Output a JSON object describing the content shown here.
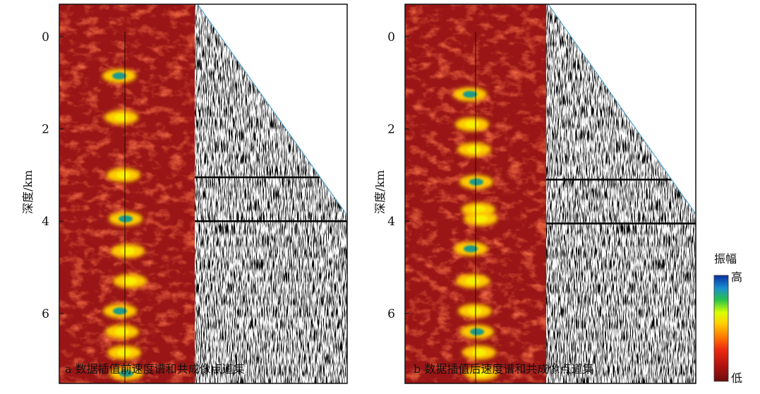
{
  "panels": [
    {
      "caption": "a 数据插值前速度谱和共成像点道集",
      "depth_ticks": [
        "0",
        "2",
        "4",
        "6"
      ],
      "axis_label": "深度/km",
      "events_km": [
        3.05,
        4.0
      ]
    },
    {
      "caption": "b 数据插值后速度谱和共成像点道集",
      "depth_ticks": [
        "0",
        "2",
        "4",
        "6"
      ],
      "axis_label": "深度/km",
      "events_km": [
        3.1,
        4.05
      ]
    }
  ],
  "colorbar": {
    "title": "振幅",
    "high": "高",
    "low": "低",
    "colors": [
      "#6b0d0d",
      "#b31212",
      "#ee2a10",
      "#ff7a00",
      "#ffd200",
      "#d8ff00",
      "#26c24b",
      "#1a8fd0",
      "#0a2fa0"
    ]
  },
  "chart_data": {
    "type": "heatmap",
    "ylabel": "深度/km",
    "ylim": [
      -0.05,
      7.6
    ],
    "yticks": [
      0,
      2,
      4,
      6
    ],
    "grid": false,
    "legend": "right",
    "panels": [
      {
        "title": "a 数据插值前速度谱和共成像点道集",
        "hotspots_depth_km": [
          0.85,
          1.75,
          3.0,
          3.95,
          4.65,
          5.3,
          5.95,
          6.4,
          6.85,
          7.3
        ],
        "gather_events_depth_km": [
          3.05,
          4.0
        ]
      },
      {
        "title": "b 数据插值后速度谱和共成像点道集",
        "hotspots_depth_km": [
          1.25,
          1.9,
          2.45,
          3.15,
          3.75,
          3.95,
          4.6,
          5.3,
          5.95,
          6.4,
          6.85,
          7.3
        ],
        "gather_events_depth_km": [
          3.1,
          4.05
        ]
      }
    ]
  }
}
